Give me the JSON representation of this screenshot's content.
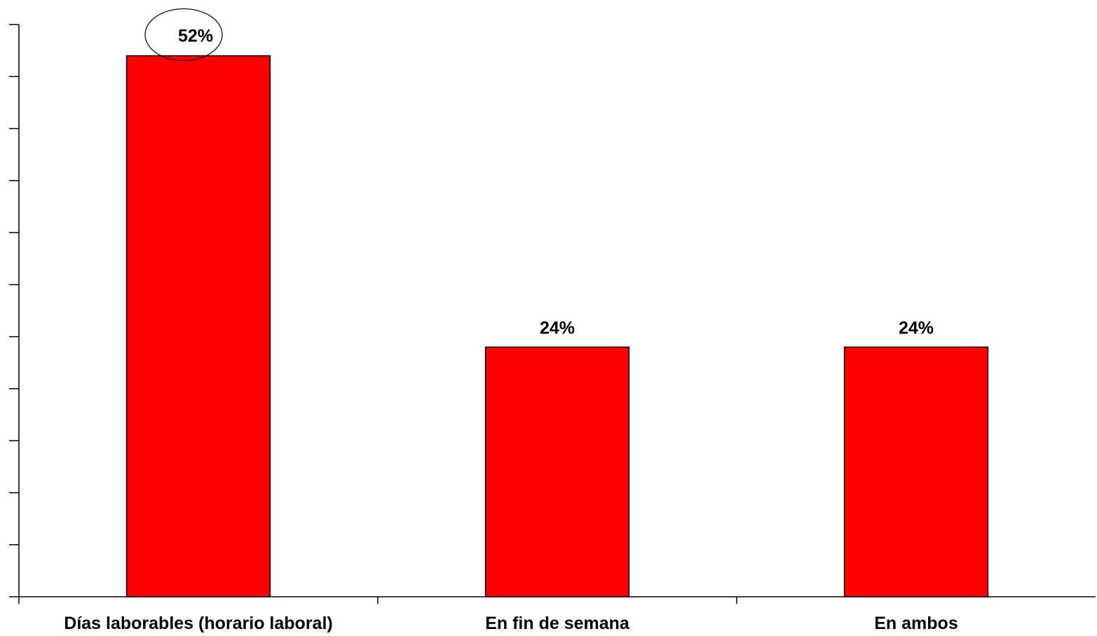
{
  "chart_data": {
    "type": "bar",
    "categories": [
      "Días laborables (horario laboral)",
      "En fin de semana",
      "En ambos"
    ],
    "values": [
      52,
      24,
      24
    ],
    "data_labels": [
      "52%",
      "24%",
      "24%"
    ],
    "highlighted_label_index": 0,
    "title": "",
    "xlabel": "",
    "ylabel": "",
    "ylim": [
      0,
      55
    ],
    "y_tick_count": 11,
    "y_tick_labels_shown": false,
    "grid": false,
    "legend": "none",
    "colors": {
      "bar": "#ff0000",
      "bar_stroke": "#000000",
      "axis": "#000000",
      "text": "#000000",
      "background": "#ffffff"
    }
  }
}
